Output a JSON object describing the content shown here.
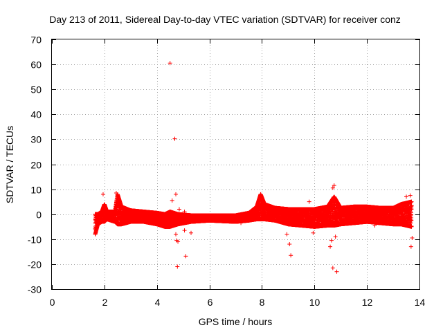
{
  "chart_data": {
    "type": "scatter",
    "title": "Day 213 of 2011, Sidereal Day-to-day VTEC variation (SDTVAR) for receiver conz",
    "xlabel": "GPS time / hours",
    "ylabel": "SDTVAR / TECUs",
    "xlim": [
      0,
      14
    ],
    "ylim": [
      -30,
      70
    ],
    "xticks": [
      0,
      2,
      4,
      6,
      8,
      10,
      12,
      14
    ],
    "yticks": [
      -30,
      -20,
      -10,
      0,
      10,
      20,
      30,
      40,
      50,
      60,
      70
    ],
    "grid": true,
    "marker": "+",
    "color": "#ff0000",
    "series": [
      {
        "name": "SDTVAR",
        "band": [
          {
            "x": 1.65,
            "lo": -8,
            "hi": 0
          },
          {
            "x": 1.75,
            "lo": -4,
            "hi": 0
          },
          {
            "x": 1.9,
            "lo": -3,
            "hi": 1
          },
          {
            "x": 2.0,
            "lo": -3,
            "hi": 4
          },
          {
            "x": 2.1,
            "lo": -2,
            "hi": 1
          },
          {
            "x": 2.4,
            "lo": -3,
            "hi": 1
          },
          {
            "x": 2.5,
            "lo": -4,
            "hi": 8
          },
          {
            "x": 2.65,
            "lo": -4,
            "hi": 3
          },
          {
            "x": 3.0,
            "lo": -3,
            "hi": 1.5
          },
          {
            "x": 3.5,
            "lo": -3,
            "hi": 1
          },
          {
            "x": 4.0,
            "lo": -4,
            "hi": 0.5
          },
          {
            "x": 4.3,
            "lo": -5,
            "hi": 0
          },
          {
            "x": 4.5,
            "lo": -5,
            "hi": 1
          },
          {
            "x": 4.8,
            "lo": -4,
            "hi": 0
          },
          {
            "x": 5.3,
            "lo": -3,
            "hi": -0.5
          },
          {
            "x": 6.0,
            "lo": -2.5,
            "hi": -0.5
          },
          {
            "x": 7.0,
            "lo": -3,
            "hi": -0.5
          },
          {
            "x": 7.5,
            "lo": -2.5,
            "hi": 0.5
          },
          {
            "x": 7.8,
            "lo": -2,
            "hi": 3
          },
          {
            "x": 7.95,
            "lo": -2,
            "hi": 8
          },
          {
            "x": 8.1,
            "lo": -2,
            "hi": 4
          },
          {
            "x": 8.5,
            "lo": -2.5,
            "hi": 2.5
          },
          {
            "x": 9.0,
            "lo": -4,
            "hi": 2
          },
          {
            "x": 9.5,
            "lo": -4.5,
            "hi": 2
          },
          {
            "x": 10.0,
            "lo": -5,
            "hi": 2
          },
          {
            "x": 10.5,
            "lo": -4.5,
            "hi": 3
          },
          {
            "x": 10.75,
            "lo": -4.5,
            "hi": 7
          },
          {
            "x": 11.0,
            "lo": -4,
            "hi": 2.5
          },
          {
            "x": 11.5,
            "lo": -3.5,
            "hi": 3
          },
          {
            "x": 12.0,
            "lo": -3,
            "hi": 3
          },
          {
            "x": 12.5,
            "lo": -3.5,
            "hi": 2.5
          },
          {
            "x": 13.0,
            "lo": -4,
            "hi": 2.5
          },
          {
            "x": 13.3,
            "lo": -4,
            "hi": 4
          },
          {
            "x": 13.7,
            "lo": -5,
            "hi": 5
          }
        ],
        "outliers": [
          [
            4.5,
            60.5
          ],
          [
            4.68,
            30.2
          ],
          [
            4.78,
            -21
          ],
          [
            4.75,
            -10.5
          ],
          [
            4.72,
            -8
          ],
          [
            4.8,
            -11
          ],
          [
            4.72,
            8
          ],
          [
            4.58,
            5.5
          ],
          [
            4.85,
            2
          ],
          [
            5.1,
            -16.8
          ],
          [
            5.05,
            -6.5
          ],
          [
            5.3,
            -7.5
          ],
          [
            5.05,
            1
          ],
          [
            1.95,
            8
          ],
          [
            2.45,
            8.5
          ],
          [
            7.2,
            -3.5
          ],
          [
            9.1,
            -16.5
          ],
          [
            9.05,
            -12
          ],
          [
            8.95,
            -8
          ],
          [
            9.8,
            5
          ],
          [
            9.95,
            -7.5
          ],
          [
            10.7,
            -21.5
          ],
          [
            10.85,
            -23
          ],
          [
            10.6,
            -13
          ],
          [
            10.65,
            -10.5
          ],
          [
            10.8,
            -9
          ],
          [
            10.7,
            10.5
          ],
          [
            10.75,
            11.5
          ],
          [
            12.3,
            -4.5
          ],
          [
            13.5,
            7
          ],
          [
            13.65,
            7.5
          ],
          [
            13.68,
            -13
          ],
          [
            13.72,
            -9.5
          ]
        ]
      }
    ]
  }
}
